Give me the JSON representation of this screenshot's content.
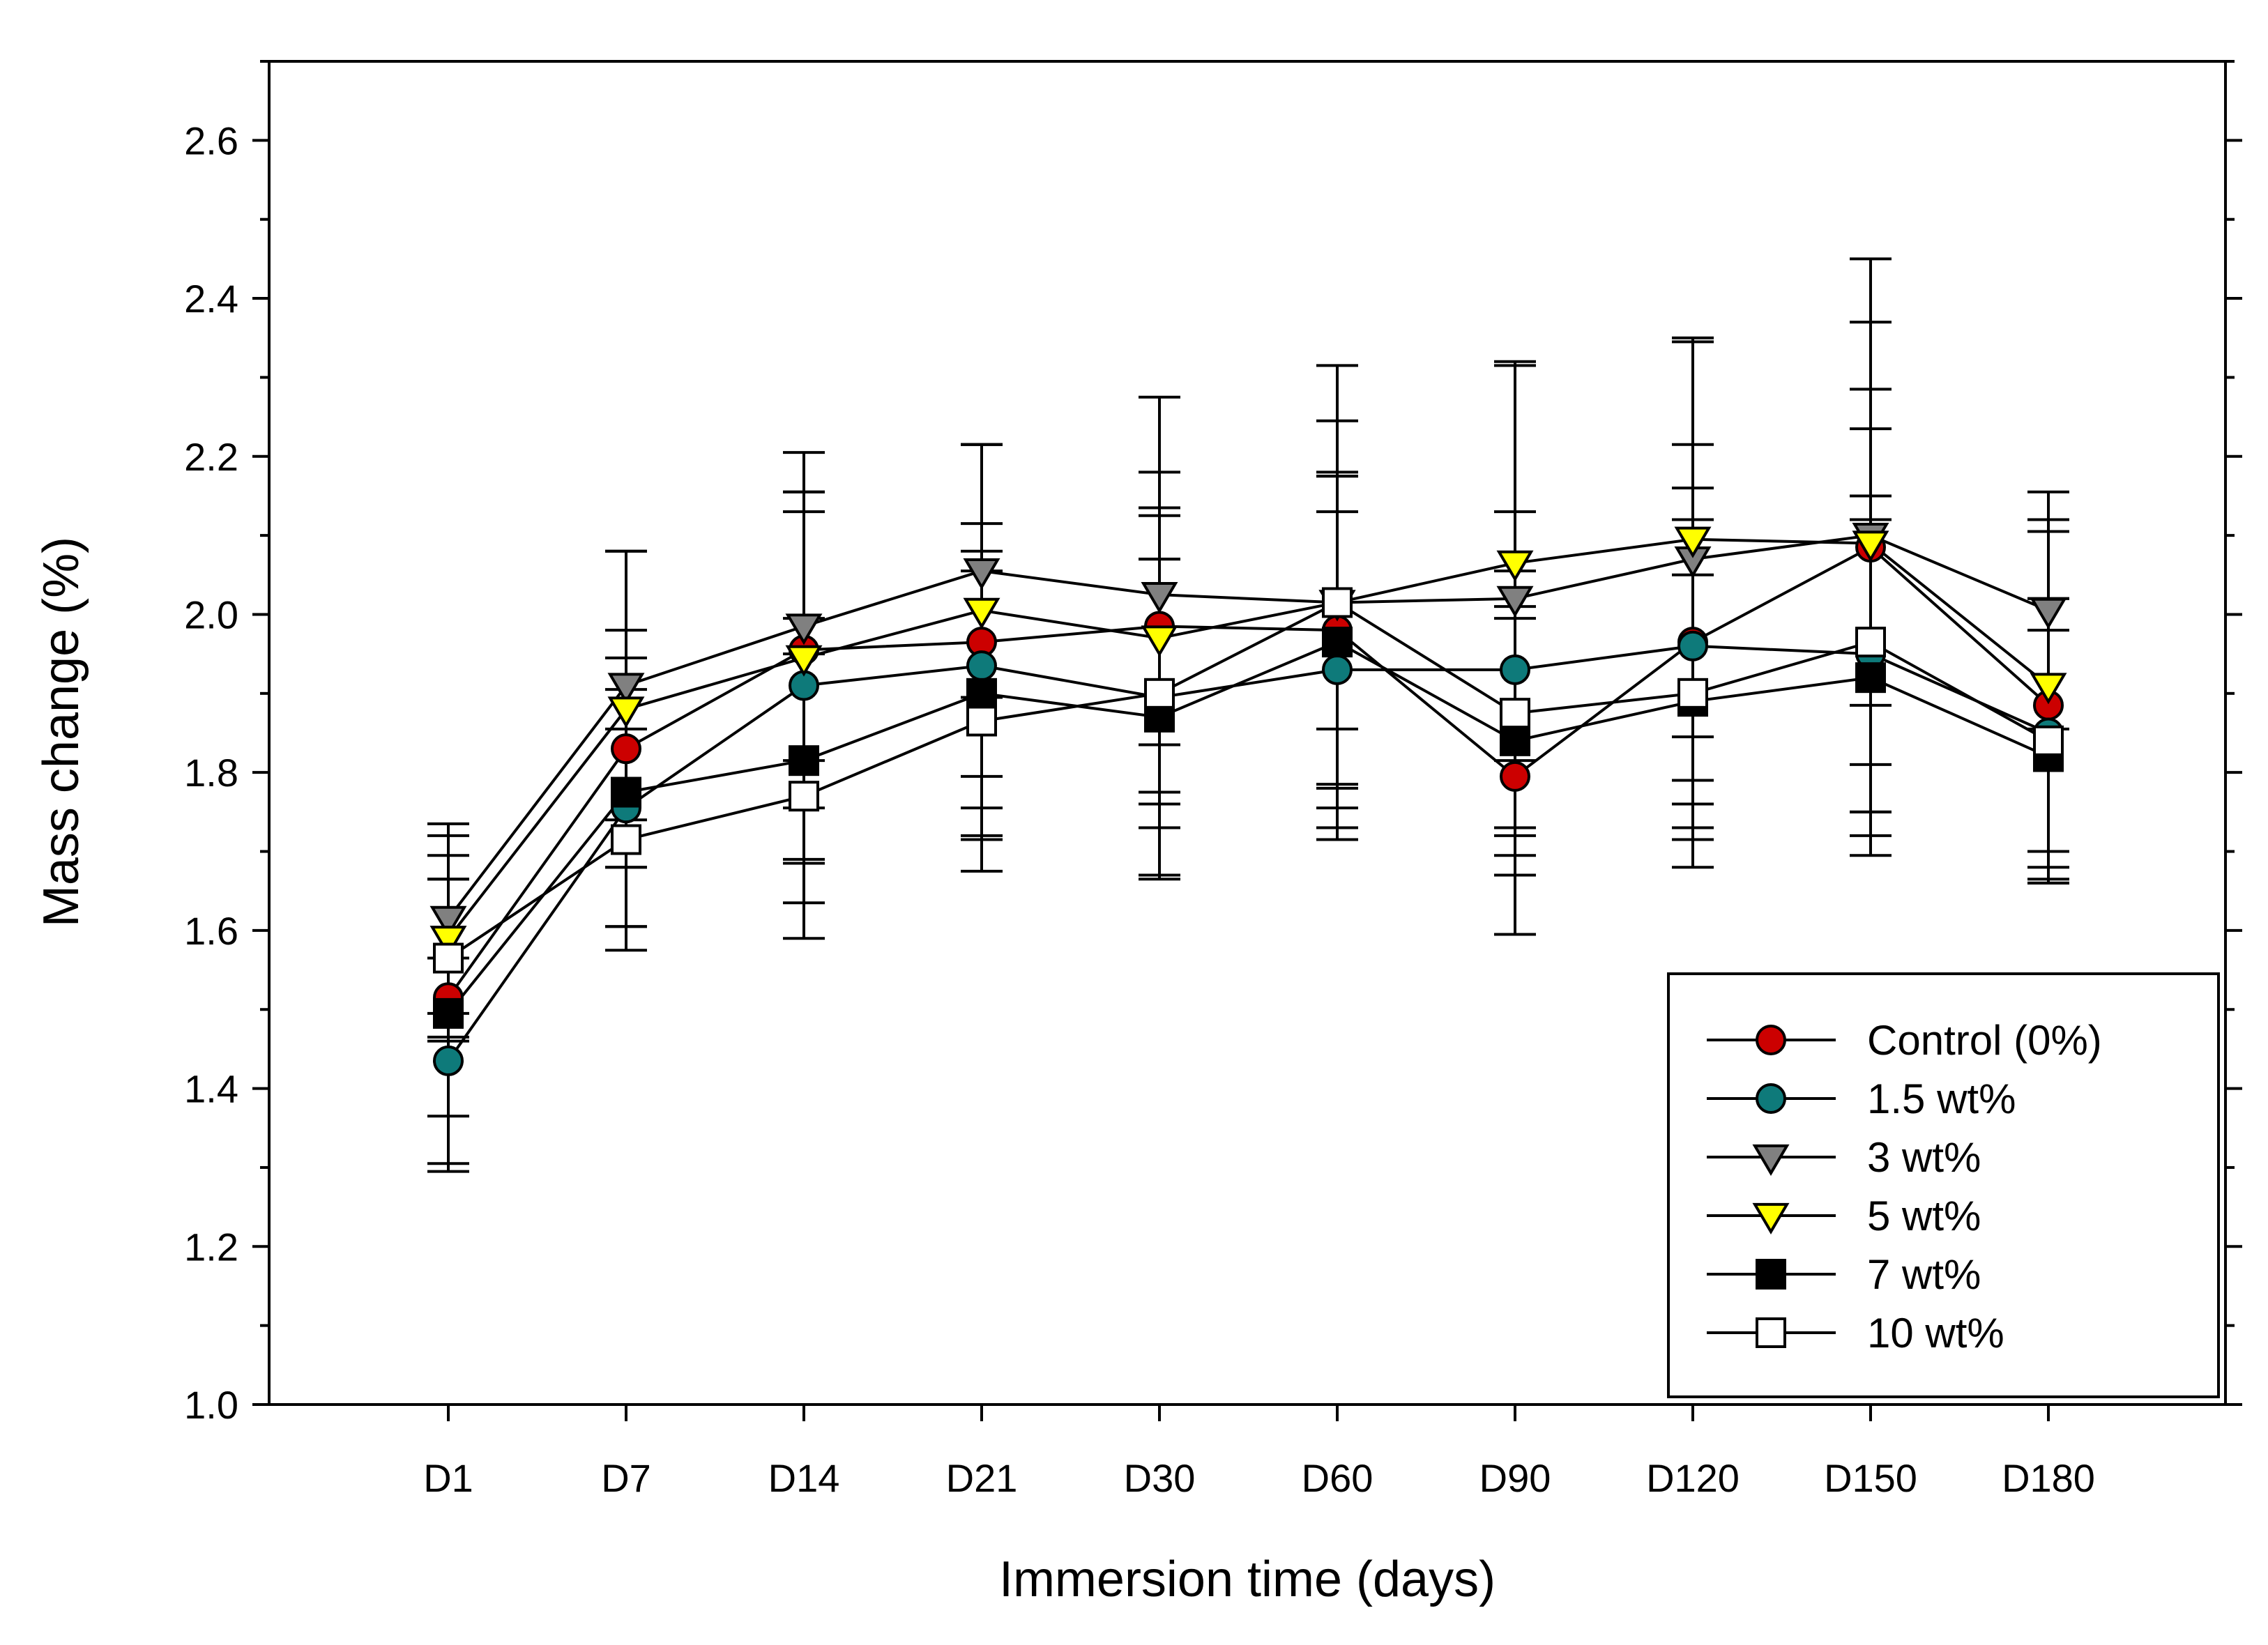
{
  "chart_data": {
    "type": "line",
    "title": "",
    "xlabel": "Immersion time (days)",
    "ylabel": "Mass change (%)",
    "categories": [
      "D1",
      "D7",
      "D14",
      "D21",
      "D30",
      "D60",
      "D90",
      "D120",
      "D150",
      "D180"
    ],
    "ylim": [
      1.0,
      2.7
    ],
    "yticks": [
      1.0,
      1.2,
      1.4,
      1.6,
      1.8,
      2.0,
      2.2,
      2.4,
      2.6
    ],
    "ytick_labels": [
      "1.0",
      "1.2",
      "1.4",
      "1.6",
      "1.8",
      "2.0",
      "2.2",
      "2.4",
      "2.6"
    ],
    "grid": false,
    "legend_position": "bottom-right",
    "series": [
      {
        "name": "Control (0%)",
        "marker": "circle",
        "fill": "#cc0000",
        "values": [
          1.515,
          1.83,
          1.955,
          1.965,
          1.985,
          1.98,
          1.795,
          1.965,
          2.085,
          1.885
        ],
        "errors": [
          0.15,
          0.15,
          0.2,
          0.25,
          0.15,
          0.2,
          0.2,
          0.25,
          0.2,
          0.22
        ]
      },
      {
        "name": " 1.5 wt%",
        "marker": "circle",
        "fill": "#0e7a7a",
        "values": [
          1.435,
          1.755,
          1.91,
          1.935,
          1.895,
          1.93,
          1.93,
          1.96,
          1.95,
          1.85
        ],
        "errors": [
          0.13,
          0.15,
          0.22,
          0.18,
          0.23,
          0.2,
          0.2,
          0.2,
          0.2,
          0.17
        ]
      },
      {
        "name": " 3 wt%",
        "marker": "triangle-down",
        "fill": "#808080",
        "values": [
          1.615,
          1.91,
          1.985,
          2.055,
          2.025,
          2.015,
          2.02,
          2.07,
          2.1,
          2.005
        ],
        "errors": [
          0.12,
          0.17,
          0.17,
          0.16,
          0.25,
          0.3,
          0.3,
          0.28,
          0.35,
          0.15
        ]
      },
      {
        "name": " 5 wt%",
        "marker": "triangle-down",
        "fill": "#ffff00",
        "values": [
          1.59,
          1.88,
          1.945,
          2.005,
          1.97,
          2.015,
          2.065,
          2.095,
          2.09,
          1.91
        ],
        "errors": [
          0.13,
          0.2,
          0.26,
          0.21,
          0.21,
          0.23,
          0.25,
          0.25,
          0.28,
          0.21
        ]
      },
      {
        "name": " 7 wt%",
        "marker": "square",
        "fill": "#000000",
        "values": [
          1.495,
          1.775,
          1.815,
          1.9,
          1.87,
          1.965,
          1.84,
          1.89,
          1.92,
          1.82
        ],
        "errors": [
          0.2,
          0.17,
          0.18,
          0.18,
          0.2,
          0.21,
          0.17,
          0.16,
          0.2,
          0.16
        ]
      },
      {
        "name": " 10 wt%",
        "marker": "square",
        "fill": "#ffffff",
        "values": [
          1.565,
          1.715,
          1.77,
          1.865,
          1.9,
          2.015,
          1.875,
          1.9,
          1.965,
          1.84
        ],
        "errors": [
          0.1,
          0.14,
          0.18,
          0.19,
          0.17,
          0.16,
          0.18,
          0.22,
          0.27,
          0.18
        ]
      }
    ]
  }
}
